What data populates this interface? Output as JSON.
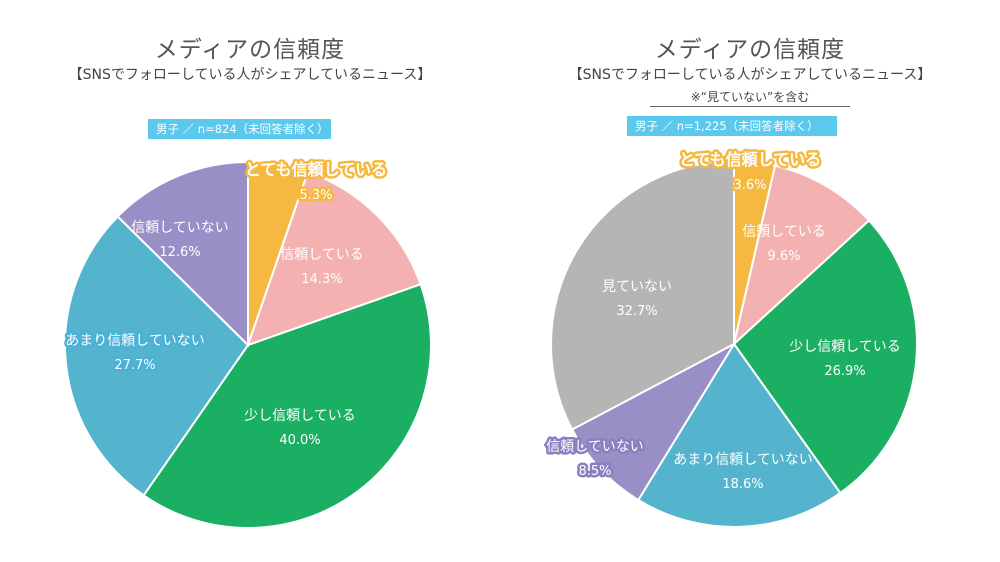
{
  "chart_data": [
    {
      "type": "pie",
      "title": "メディアの信頼度",
      "subtitle": "【SNSでフォローしている人がシェアしているニュース】",
      "note": "",
      "badge": "男子 ／ n=824（未回答者除く）",
      "slices": [
        {
          "label": "とても信頼している",
          "value": 5.3,
          "display": "5.3%",
          "color": "#f5b942",
          "text_color": "#ffffff",
          "label_style": "outlined-orange"
        },
        {
          "label": "信頼している",
          "value": 14.3,
          "display": "14.3%",
          "color": "#f4b1b1",
          "text_color": "#ffffff",
          "label_style": "plain"
        },
        {
          "label": "少し信頼している",
          "value": 40.0,
          "display": "40.0%",
          "color": "#1aaf62",
          "text_color": "#ffffff",
          "label_style": "plain"
        },
        {
          "label": "あまり信頼していない",
          "value": 27.7,
          "display": "27.7%",
          "color": "#54b4cd",
          "text_color": "#ffffff",
          "label_style": "outlined-blue"
        },
        {
          "label": "信頼していない",
          "value": 12.6,
          "display": "12.6%",
          "color": "#9a8ec7",
          "text_color": "#ffffff",
          "label_style": "plain"
        }
      ]
    },
    {
      "type": "pie",
      "title": "メディアの信頼度",
      "subtitle": "【SNSでフォローしている人がシェアしているニュース】",
      "note": "※“見ていない”を含む",
      "badge": "男子 ／ n=1,225（未回答者除く）",
      "slices": [
        {
          "label": "とても信頼している",
          "value": 3.6,
          "display": "3.6%",
          "color": "#f5b942",
          "text_color": "#ffffff",
          "label_style": "outlined-orange"
        },
        {
          "label": "信頼している",
          "value": 9.6,
          "display": "9.6%",
          "color": "#f4b1b1",
          "text_color": "#ffffff",
          "label_style": "plain"
        },
        {
          "label": "少し信頼している",
          "value": 26.9,
          "display": "26.9%",
          "color": "#1aaf62",
          "text_color": "#ffffff",
          "label_style": "plain"
        },
        {
          "label": "あまり信頼していない",
          "value": 18.6,
          "display": "18.6%",
          "color": "#54b4cd",
          "text_color": "#ffffff",
          "label_style": "plain"
        },
        {
          "label": "信頼していない",
          "value": 8.5,
          "display": "8.5%",
          "color": "#9a8ec7",
          "text_color": "#ffffff",
          "label_style": "outlined-purple"
        },
        {
          "label": "見ていない",
          "value": 32.7,
          "display": "32.7%",
          "color": "#b5b5b5",
          "text_color": "#ffffff",
          "label_style": "plain"
        }
      ]
    }
  ]
}
